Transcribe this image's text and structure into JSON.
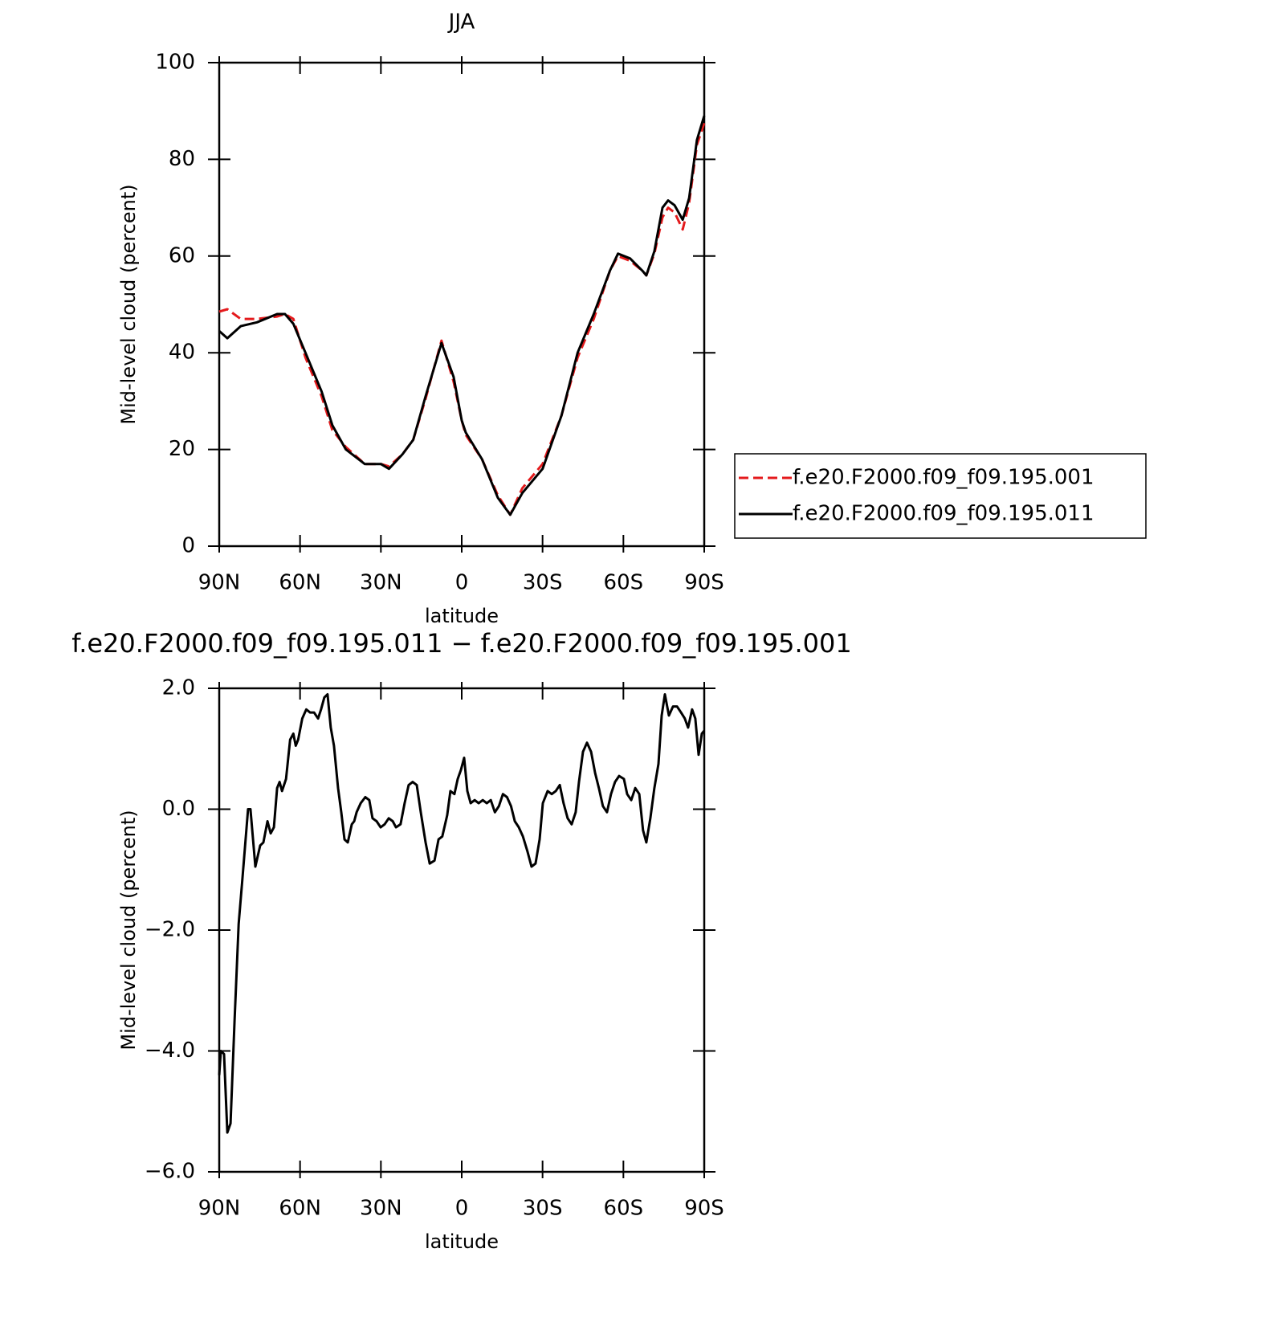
{
  "chart_data": [
    {
      "type": "line",
      "title": "JJA",
      "x_label": "latitude",
      "y_label": "Mid-level cloud (percent)",
      "x": [
        90,
        87,
        82,
        76,
        68.5,
        65.6,
        62.5,
        58,
        52,
        48,
        43,
        36,
        30,
        27,
        22,
        18,
        13.4,
        7.5,
        3,
        0,
        -1.5,
        -7.5,
        -13.4,
        -18,
        -22.5,
        -30,
        -37,
        -43,
        -49,
        -55,
        -58,
        -62.5,
        -67,
        -68.5,
        -71.5,
        -74.5,
        -76.6,
        -79,
        -82,
        -84.4,
        -87.3,
        -90
      ],
      "series": [
        {
          "name": "f.e20.F2000.f09_f09.195.001",
          "color": "#e41a1c",
          "dash": true,
          "values": [
            48.5,
            49,
            47,
            47,
            47.5,
            48,
            47,
            39,
            31,
            24,
            20.5,
            17,
            17,
            16.5,
            19,
            22,
            30.5,
            42.5,
            34,
            26,
            23,
            18,
            10.5,
            6.5,
            12,
            17,
            27,
            39,
            47,
            57,
            60,
            59,
            57,
            56,
            60.5,
            68,
            70,
            69,
            65.5,
            71,
            83,
            87.5
          ]
        },
        {
          "name": "f.e20.F2000.f09_f09.195.011",
          "color": "#000000",
          "dash": false,
          "values": [
            44.5,
            43,
            45.5,
            46.3,
            48,
            48,
            46,
            40,
            32,
            25,
            20,
            17,
            17,
            16,
            19,
            22,
            31,
            42,
            35,
            26,
            23.5,
            18,
            10,
            6.5,
            11,
            16,
            27,
            40,
            48,
            57,
            60.5,
            59.5,
            57,
            56,
            61,
            70,
            71.5,
            70.5,
            67.5,
            72,
            84,
            89
          ]
        }
      ],
      "xlim": [
        90,
        -90
      ],
      "xticks": [
        {
          "value": 90,
          "label": "90N"
        },
        {
          "value": 60,
          "label": "60N"
        },
        {
          "value": 30,
          "label": "30N"
        },
        0,
        {
          "value": -30,
          "label": "30S"
        },
        {
          "value": -60,
          "label": "60S"
        },
        {
          "value": -90,
          "label": "90S"
        }
      ],
      "ylim": [
        0,
        100
      ],
      "yticks": [
        0,
        20,
        40,
        60,
        80,
        100
      ],
      "legend": "right"
    },
    {
      "type": "line",
      "title": "f.e20.F2000.f09_f09.195.011 − f.e20.F2000.f09_f09.195.001",
      "x_label": "latitude",
      "y_label": "Mid-level cloud (percent)",
      "x": [
        90,
        89.4,
        88.2,
        87.0,
        85.8,
        84.3,
        82.8,
        81.4,
        79.3,
        78.4,
        76.6,
        74.8,
        73.6,
        72.1,
        70.9,
        69.7,
        68.5,
        67.6,
        66.7,
        65.2,
        63.7,
        62.5,
        61.6,
        60.7,
        59.2,
        57.7,
        56.3,
        54.8,
        53.3,
        52.2,
        51.0,
        49.8,
        48.6,
        47.4,
        45.9,
        44.7,
        43.5,
        42.3,
        40.8,
        39.9,
        39.0,
        37.5,
        35.8,
        34.3,
        33.1,
        31.6,
        30.1,
        28.6,
        27.1,
        25.6,
        24.4,
        22.7,
        21.2,
        19.7,
        18.2,
        16.7,
        15.2,
        13.4,
        11.9,
        10.1,
        8.6,
        7.2,
        5.4,
        4.2,
        2.7,
        1.5,
        0.3,
        -0.9,
        -2.1,
        -3.3,
        -4.8,
        -6.3,
        -7.8,
        -9.3,
        -10.8,
        -12.3,
        -13.8,
        -15.3,
        -16.8,
        -18.3,
        -19.7,
        -21.2,
        -22.7,
        -24.4,
        -25.9,
        -27.4,
        -28.9,
        -30.1,
        -31.9,
        -33.4,
        -34.9,
        -36.4,
        -37.8,
        -39.3,
        -40.8,
        -42.3,
        -43.5,
        -45.0,
        -46.5,
        -48.0,
        -49.5,
        -50.9,
        -52.4,
        -53.9,
        -55.4,
        -56.9,
        -58.4,
        -60.2,
        -61.4,
        -62.9,
        -64.4,
        -65.9,
        -67.3,
        -68.5,
        -70.0,
        -71.5,
        -73.0,
        -74.2,
        -75.4,
        -76.9,
        -78.4,
        -79.9,
        -81.4,
        -82.8,
        -84.0,
        -85.5,
        -86.7,
        -87.9,
        -89.1,
        -90
      ],
      "series": [
        {
          "color": "#000000",
          "values": [
            -4.4,
            -4.0,
            -4.05,
            -5.35,
            -5.2,
            -3.5,
            -1.9,
            -1.15,
            0.0,
            0.0,
            -0.95,
            -0.6,
            -0.55,
            -0.2,
            -0.4,
            -0.3,
            0.35,
            0.45,
            0.3,
            0.5,
            1.15,
            1.25,
            1.05,
            1.15,
            1.5,
            1.65,
            1.6,
            1.6,
            1.5,
            1.65,
            1.85,
            1.9,
            1.35,
            1.05,
            0.35,
            -0.05,
            -0.5,
            -0.55,
            -0.25,
            -0.2,
            -0.05,
            0.1,
            0.2,
            0.15,
            -0.15,
            -0.2,
            -0.3,
            -0.25,
            -0.15,
            -0.2,
            -0.3,
            -0.25,
            0.1,
            0.4,
            0.45,
            0.4,
            -0.05,
            -0.55,
            -0.9,
            -0.85,
            -0.5,
            -0.45,
            -0.1,
            0.3,
            0.25,
            0.5,
            0.65,
            0.85,
            0.3,
            0.1,
            0.15,
            0.1,
            0.15,
            0.1,
            0.15,
            -0.05,
            0.05,
            0.25,
            0.2,
            0.05,
            -0.2,
            -0.3,
            -0.45,
            -0.7,
            -0.95,
            -0.9,
            -0.5,
            0.1,
            0.3,
            0.25,
            0.3,
            0.4,
            0.1,
            -0.15,
            -0.25,
            -0.05,
            0.45,
            0.95,
            1.1,
            0.95,
            0.6,
            0.35,
            0.05,
            -0.05,
            0.25,
            0.45,
            0.55,
            0.5,
            0.25,
            0.15,
            0.35,
            0.25,
            -0.35,
            -0.55,
            -0.15,
            0.35,
            0.75,
            1.55,
            1.9,
            1.55,
            1.7,
            1.7,
            1.6,
            1.5,
            1.35,
            1.65,
            1.5,
            0.9,
            1.25,
            1.3
          ]
        }
      ],
      "xlim": [
        90,
        -90
      ],
      "xticks": [
        {
          "value": 90,
          "label": "90N"
        },
        {
          "value": 60,
          "label": "60N"
        },
        {
          "value": 30,
          "label": "30N"
        },
        0,
        {
          "value": -30,
          "label": "30S"
        },
        {
          "value": -60,
          "label": "60S"
        },
        {
          "value": -90,
          "label": "90S"
        }
      ],
      "ylim": [
        -6,
        2
      ],
      "yticks": [
        {
          "value": -6,
          "label": "−6.0"
        },
        {
          "value": -4,
          "label": "−4.0"
        },
        {
          "value": -2,
          "label": "−2.0"
        },
        {
          "value": 0,
          "label": "0.0"
        },
        {
          "value": 2,
          "label": "2.0"
        }
      ]
    }
  ]
}
